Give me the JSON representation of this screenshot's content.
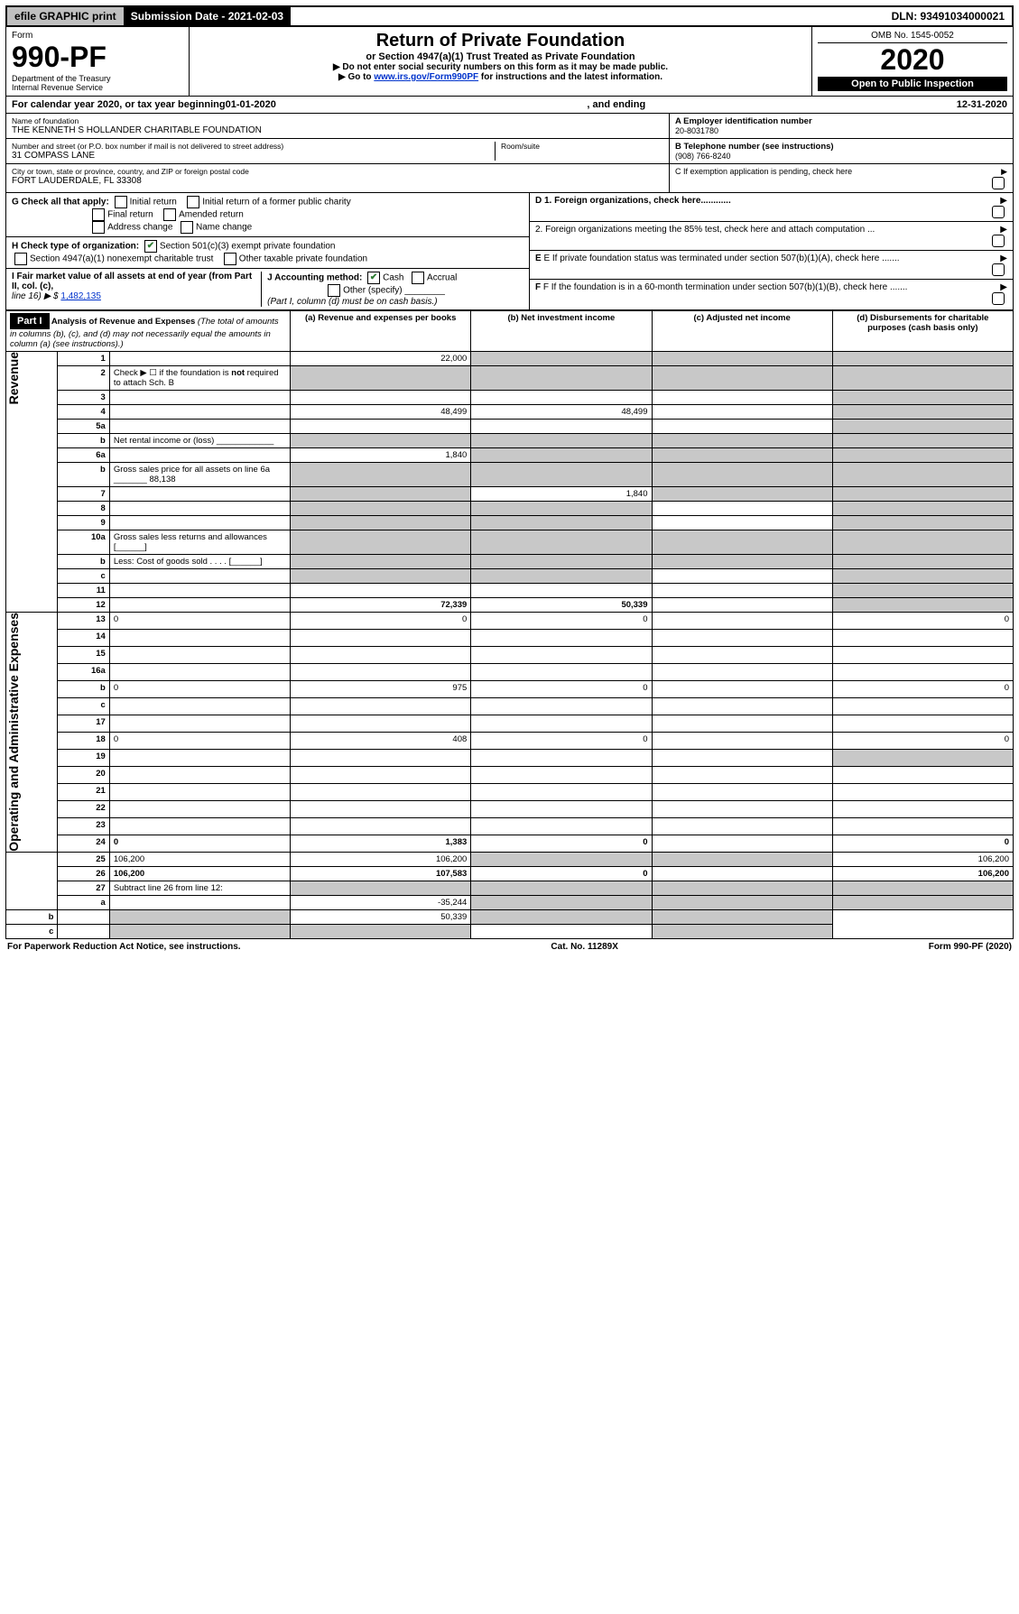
{
  "topbar": {
    "efile": "efile GRAPHIC print",
    "subdate": "Submission Date - 2021-02-03",
    "dln": "DLN: 93491034000021"
  },
  "header": {
    "form_word": "Form",
    "form_num": "990-PF",
    "dept1": "Department of the Treasury",
    "dept2": "Internal Revenue Service",
    "title": "Return of Private Foundation",
    "subtitle": "or Section 4947(a)(1) Trust Treated as Private Foundation",
    "instr1": "▶ Do not enter social security numbers on this form as it may be made public.",
    "instr2_pre": "▶ Go to ",
    "instr2_link": "www.irs.gov/Form990PF",
    "instr2_post": " for instructions and the latest information.",
    "omb": "OMB No. 1545-0052",
    "year": "2020",
    "open": "Open to Public Inspection"
  },
  "calyear": {
    "pre": "For calendar year 2020, or tax year beginning ",
    "begin": "01-01-2020",
    "mid": ", and ending ",
    "end": "12-31-2020"
  },
  "ident": {
    "name_label": "Name of foundation",
    "name": "THE KENNETH S HOLLANDER CHARITABLE FOUNDATION",
    "addr_label": "Number and street (or P.O. box number if mail is not delivered to street address)",
    "addr": "31 COMPASS LANE",
    "room_label": "Room/suite",
    "city_label": "City or town, state or province, country, and ZIP or foreign postal code",
    "city": "FORT LAUDERDALE, FL  33308",
    "A_label": "A Employer identification number",
    "A_val": "20-8031780",
    "B_label": "B  Telephone number (see instructions)",
    "B_val": "(908) 766-8240",
    "C_label": "C  If exemption application is pending, check here",
    "D1": "D 1. Foreign organizations, check here............",
    "D2": "2. Foreign organizations meeting the 85% test, check here and attach computation ...",
    "E": "E  If private foundation status was terminated under section 507(b)(1)(A), check here .......",
    "F": "F  If the foundation is in a 60-month termination under section 507(b)(1)(B), check here ......."
  },
  "G": {
    "label": "G Check all that apply:",
    "opts": [
      "Initial return",
      "Initial return of a former public charity",
      "Final return",
      "Amended return",
      "Address change",
      "Name change"
    ]
  },
  "H": {
    "label": "H Check type of organization:",
    "opt1": "Section 501(c)(3) exempt private foundation",
    "opt2": "Section 4947(a)(1) nonexempt charitable trust",
    "opt3": "Other taxable private foundation"
  },
  "I": {
    "label": "I Fair market value of all assets at end of year (from Part II, col. (c),",
    "line": "line 16) ▶ $",
    "val": "1,482,135"
  },
  "J": {
    "label": "J Accounting method:",
    "cash": "Cash",
    "accrual": "Accrual",
    "other": "Other (specify)",
    "note": "(Part I, column (d) must be on cash basis.)"
  },
  "part1": {
    "hdr": "Part I",
    "title": "Analysis of Revenue and Expenses",
    "title_note": " (The total of amounts in columns (b), (c), and (d) may not necessarily equal the amounts in column (a) (see instructions).)",
    "col_a": "(a) Revenue and expenses per books",
    "col_b": "(b) Net investment income",
    "col_c": "(c) Adjusted net income",
    "col_d": "(d) Disbursements for charitable purposes (cash basis only)"
  },
  "sections": {
    "revenue": "Revenue",
    "opex": "Operating and Administrative Expenses"
  },
  "rows": [
    {
      "n": "1",
      "d": "",
      "a": "22,000",
      "b": "",
      "c": "",
      "sb": true,
      "sc": true,
      "sd": true
    },
    {
      "n": "2",
      "d": "Check ▶ ☐ if the foundation is <b>not</b> required to attach Sch. B",
      "merge": true
    },
    {
      "n": "3",
      "d": "",
      "a": "",
      "b": "",
      "c": "",
      "sd": true
    },
    {
      "n": "4",
      "d": "",
      "a": "48,499",
      "b": "48,499",
      "c": "",
      "sd": true
    },
    {
      "n": "5a",
      "d": "",
      "a": "",
      "b": "",
      "c": "",
      "sd": true
    },
    {
      "n": "b",
      "d": "Net rental income or (loss)  ____________",
      "merge": true
    },
    {
      "n": "6a",
      "d": "",
      "a": "1,840",
      "b": "",
      "c": "",
      "sb": true,
      "sc": true,
      "sd": true
    },
    {
      "n": "b",
      "d": "Gross sales price for all assets on line 6a _______ 88,138",
      "merge": true
    },
    {
      "n": "7",
      "d": "",
      "a": "",
      "b": "1,840",
      "c": "",
      "sa": true,
      "sc": true,
      "sd": true
    },
    {
      "n": "8",
      "d": "",
      "a": "",
      "b": "",
      "c": "",
      "sa": true,
      "sb": true,
      "sd": true
    },
    {
      "n": "9",
      "d": "",
      "a": "",
      "b": "",
      "c": "",
      "sa": true,
      "sb": true,
      "sd": true
    },
    {
      "n": "10a",
      "d": "Gross sales less returns and allowances  [______]",
      "merge": true
    },
    {
      "n": "b",
      "d": "Less: Cost of goods sold . . . .  [______]",
      "merge": true
    },
    {
      "n": "c",
      "d": "",
      "a": "",
      "b": "",
      "c": "",
      "sa": true,
      "sb": true,
      "sd": true
    },
    {
      "n": "11",
      "d": "",
      "a": "",
      "b": "",
      "c": "",
      "sd": true
    },
    {
      "n": "12",
      "d": "",
      "a": "72,339",
      "b": "50,339",
      "c": "",
      "sd": true,
      "bold": true
    },
    {
      "n": "13",
      "d": "0",
      "a": "0",
      "b": "0",
      "c": ""
    },
    {
      "n": "14",
      "d": "",
      "a": "",
      "b": "",
      "c": ""
    },
    {
      "n": "15",
      "d": "",
      "a": "",
      "b": "",
      "c": ""
    },
    {
      "n": "16a",
      "d": "",
      "a": "",
      "b": "",
      "c": ""
    },
    {
      "n": "b",
      "d": "0",
      "a": "975",
      "b": "0",
      "c": ""
    },
    {
      "n": "c",
      "d": "",
      "a": "",
      "b": "",
      "c": ""
    },
    {
      "n": "17",
      "d": "",
      "a": "",
      "b": "",
      "c": ""
    },
    {
      "n": "18",
      "d": "0",
      "a": "408",
      "b": "0",
      "c": ""
    },
    {
      "n": "19",
      "d": "",
      "a": "",
      "b": "",
      "c": "",
      "sd": true
    },
    {
      "n": "20",
      "d": "",
      "a": "",
      "b": "",
      "c": ""
    },
    {
      "n": "21",
      "d": "",
      "a": "",
      "b": "",
      "c": ""
    },
    {
      "n": "22",
      "d": "",
      "a": "",
      "b": "",
      "c": ""
    },
    {
      "n": "23",
      "d": "",
      "a": "",
      "b": "",
      "c": ""
    },
    {
      "n": "24",
      "d": "0",
      "a": "1,383",
      "b": "0",
      "c": "",
      "bold": true
    },
    {
      "n": "25",
      "d": "106,200",
      "a": "106,200",
      "b": "",
      "c": "",
      "sb": true,
      "sc": true
    },
    {
      "n": "26",
      "d": "106,200",
      "a": "107,583",
      "b": "0",
      "c": "",
      "bold": true
    },
    {
      "n": "27",
      "d": "Subtract line 26 from line 12:",
      "merge": true
    },
    {
      "n": "a",
      "d": "",
      "a": "-35,244",
      "b": "",
      "c": "",
      "sb": true,
      "sc": true,
      "sd": true
    },
    {
      "n": "b",
      "d": "",
      "a": "",
      "b": "50,339",
      "c": "",
      "sa": true,
      "sc": true,
      "sd": true
    },
    {
      "n": "c",
      "d": "",
      "a": "",
      "b": "",
      "c": "",
      "sa": true,
      "sb": true,
      "sd": true
    }
  ],
  "footer": {
    "left": "For Paperwork Reduction Act Notice, see instructions.",
    "mid": "Cat. No. 11289X",
    "right": "Form 990-PF (2020)"
  }
}
